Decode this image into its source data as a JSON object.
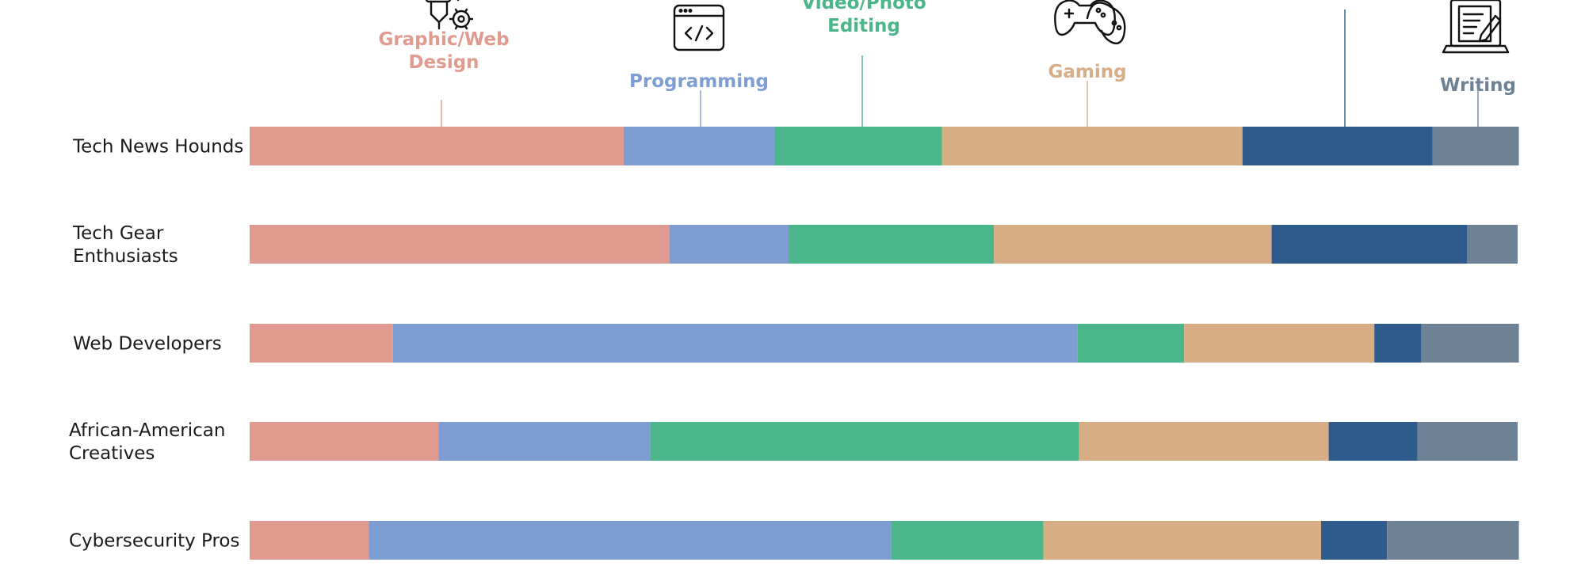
{
  "chart_data": {
    "type": "bar",
    "orientation": "horizontal",
    "stacked": true,
    "normalized": true,
    "grid": false,
    "legend": "top",
    "categories": [
      "Tech News Hounds",
      "Tech Gear Enthusiasts",
      "Web Developers",
      "African-American Creatives",
      "Cybersecurity Pros"
    ],
    "category_lines": [
      [
        "Tech News Hounds"
      ],
      [
        "Tech Gear",
        "Enthusiasts"
      ],
      [
        "Web Developers"
      ],
      [
        "African-American",
        "Creatives"
      ],
      [
        "Cybersecurity Pros"
      ]
    ],
    "series": [
      {
        "name": "Graphic/Web Design",
        "label_lines": [
          "Graphic/Web",
          "Design"
        ],
        "icon": "designer-icon",
        "color": "#e09a8f",
        "values": [
          29.5,
          33.1,
          11.3,
          14.9,
          9.4
        ]
      },
      {
        "name": "Programming",
        "label_lines": [
          "Programming"
        ],
        "icon": "code-window-icon",
        "color": "#7e9dd2",
        "values": [
          11.9,
          9.4,
          54.0,
          16.7,
          41.2
        ]
      },
      {
        "name": "Video/Photo Editing",
        "label_lines": [
          "Video/Photo",
          "Editing"
        ],
        "icon": "camera-icon",
        "color": "#4bb58b",
        "values": [
          13.2,
          16.2,
          8.4,
          33.8,
          12.0
        ]
      },
      {
        "name": "Gaming",
        "label_lines": [
          "Gaming"
        ],
        "icon": "gamepad-icon",
        "color": "#d7ad86",
        "values": [
          23.7,
          21.9,
          15.0,
          19.7,
          21.9
        ]
      },
      {
        "name": "",
        "label_lines": [],
        "icon": "",
        "color": "#2e5b8c",
        "values": [
          15.0,
          15.4,
          3.7,
          7.0,
          5.2
        ]
      },
      {
        "name": "Writing",
        "label_lines": [
          "Writing"
        ],
        "icon": "laptop-writing-icon",
        "color": "#6e8296",
        "values": [
          6.8,
          4.0,
          7.7,
          7.9,
          10.4
        ]
      }
    ],
    "xlim": [
      0,
      100
    ]
  }
}
